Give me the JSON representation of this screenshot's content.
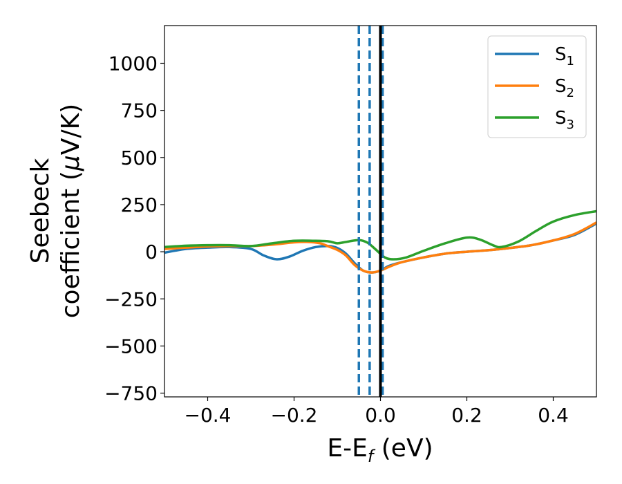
{
  "chart_data": {
    "type": "line",
    "title": "",
    "xlabel": {
      "main": "E-E",
      "sub": "f",
      "unit": " (eV)"
    },
    "ylabel": {
      "line1": "Seebeck",
      "line2_a": "coefficient  (",
      "mu": "μ",
      "line2_b": "V/K)"
    },
    "xlim": [
      -0.5,
      0.5
    ],
    "ylim": [
      -770,
      1200
    ],
    "xticks": [
      -0.4,
      -0.2,
      0.0,
      0.2,
      0.4
    ],
    "xtick_labels": [
      "−0.4",
      "−0.2",
      "0.0",
      "0.2",
      "0.4"
    ],
    "yticks": [
      -750,
      -500,
      -250,
      0,
      250,
      500,
      750,
      1000
    ],
    "ytick_labels": [
      "−750",
      "−500",
      "−250",
      "0",
      "250",
      "500",
      "750",
      "1000"
    ],
    "grid": false,
    "legend_position": "top-right",
    "series": [
      {
        "name": "S",
        "name_sub": "1",
        "color": "#1f77b4",
        "x": [
          -0.5,
          -0.45,
          -0.4,
          -0.35,
          -0.3,
          -0.27,
          -0.24,
          -0.21,
          -0.18,
          -0.15,
          -0.12,
          -0.1,
          -0.08,
          -0.06,
          -0.04,
          -0.02,
          0.0,
          0.02,
          0.05,
          0.1,
          0.15,
          0.2,
          0.25,
          0.3,
          0.35,
          0.4,
          0.45,
          0.5
        ],
        "y": [
          -5,
          15,
          22,
          25,
          15,
          -20,
          -40,
          -25,
          5,
          25,
          30,
          20,
          -10,
          -60,
          -100,
          -110,
          -100,
          -75,
          -55,
          -30,
          -10,
          0,
          8,
          20,
          35,
          60,
          90,
          150
        ]
      },
      {
        "name": "S",
        "name_sub": "2",
        "color": "#ff7f0e",
        "x": [
          -0.5,
          -0.45,
          -0.4,
          -0.35,
          -0.3,
          -0.25,
          -0.2,
          -0.17,
          -0.14,
          -0.12,
          -0.1,
          -0.08,
          -0.06,
          -0.04,
          -0.02,
          0.0,
          0.02,
          0.05,
          0.1,
          0.15,
          0.2,
          0.25,
          0.3,
          0.35,
          0.4,
          0.45,
          0.5
        ],
        "y": [
          15,
          22,
          28,
          30,
          30,
          38,
          50,
          52,
          45,
          28,
          10,
          -20,
          -70,
          -100,
          -110,
          -100,
          -80,
          -55,
          -30,
          -10,
          0,
          8,
          20,
          35,
          60,
          95,
          155
        ]
      },
      {
        "name": "S",
        "name_sub": "3",
        "color": "#2ca02c",
        "x": [
          -0.5,
          -0.45,
          -0.4,
          -0.35,
          -0.3,
          -0.25,
          -0.2,
          -0.15,
          -0.12,
          -0.1,
          -0.08,
          -0.05,
          -0.03,
          -0.01,
          0.01,
          0.03,
          0.06,
          0.1,
          0.15,
          0.2,
          0.23,
          0.26,
          0.28,
          0.32,
          0.36,
          0.4,
          0.45,
          0.5
        ],
        "y": [
          25,
          32,
          35,
          35,
          30,
          45,
          58,
          58,
          55,
          45,
          52,
          62,
          48,
          10,
          -30,
          -40,
          -30,
          5,
          45,
          75,
          65,
          35,
          25,
          55,
          110,
          160,
          195,
          215
        ]
      }
    ],
    "vertical_lines": [
      {
        "x": -0.05,
        "style": "dashed",
        "color": "#1f77b4"
      },
      {
        "x": -0.025,
        "style": "dashed",
        "color": "#1f77b4"
      },
      {
        "x": 0.005,
        "style": "dashed",
        "color": "#1f77b4"
      },
      {
        "x": 0.0,
        "style": "solid",
        "color": "#000000"
      }
    ]
  }
}
